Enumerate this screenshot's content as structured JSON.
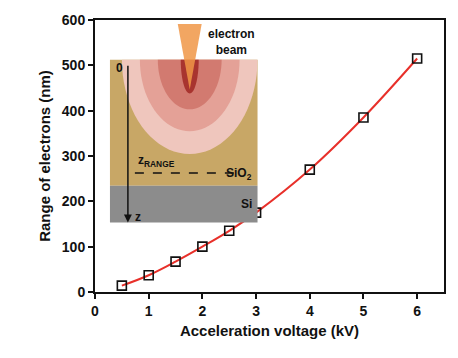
{
  "chart_data": {
    "type": "line",
    "x": [
      0.5,
      1,
      1.5,
      2,
      2.5,
      3,
      4,
      5,
      6
    ],
    "values": [
      14,
      37,
      67,
      100,
      135,
      175,
      270,
      385,
      515
    ],
    "color": "#e8302a",
    "marker": "square-open",
    "line_style": "solid",
    "xlabel": "Acceleration voltage (kV)",
    "ylabel": "Range of electrons (nm)",
    "xlim": [
      0,
      6.5
    ],
    "xticks": [
      0,
      1,
      2,
      3,
      4,
      5,
      6
    ],
    "ylim": [
      0,
      600
    ],
    "yticks": [
      0,
      100,
      200,
      300,
      400,
      500,
      600
    ],
    "grid": false,
    "annotations": {
      "depth_origin": "0",
      "beam": "electron beam",
      "range": {
        "base": "z",
        "sub": "RANGE"
      },
      "oxide": {
        "base": "SiO",
        "sub": "2"
      },
      "substrate": "Si",
      "depth_axis": "z"
    }
  }
}
